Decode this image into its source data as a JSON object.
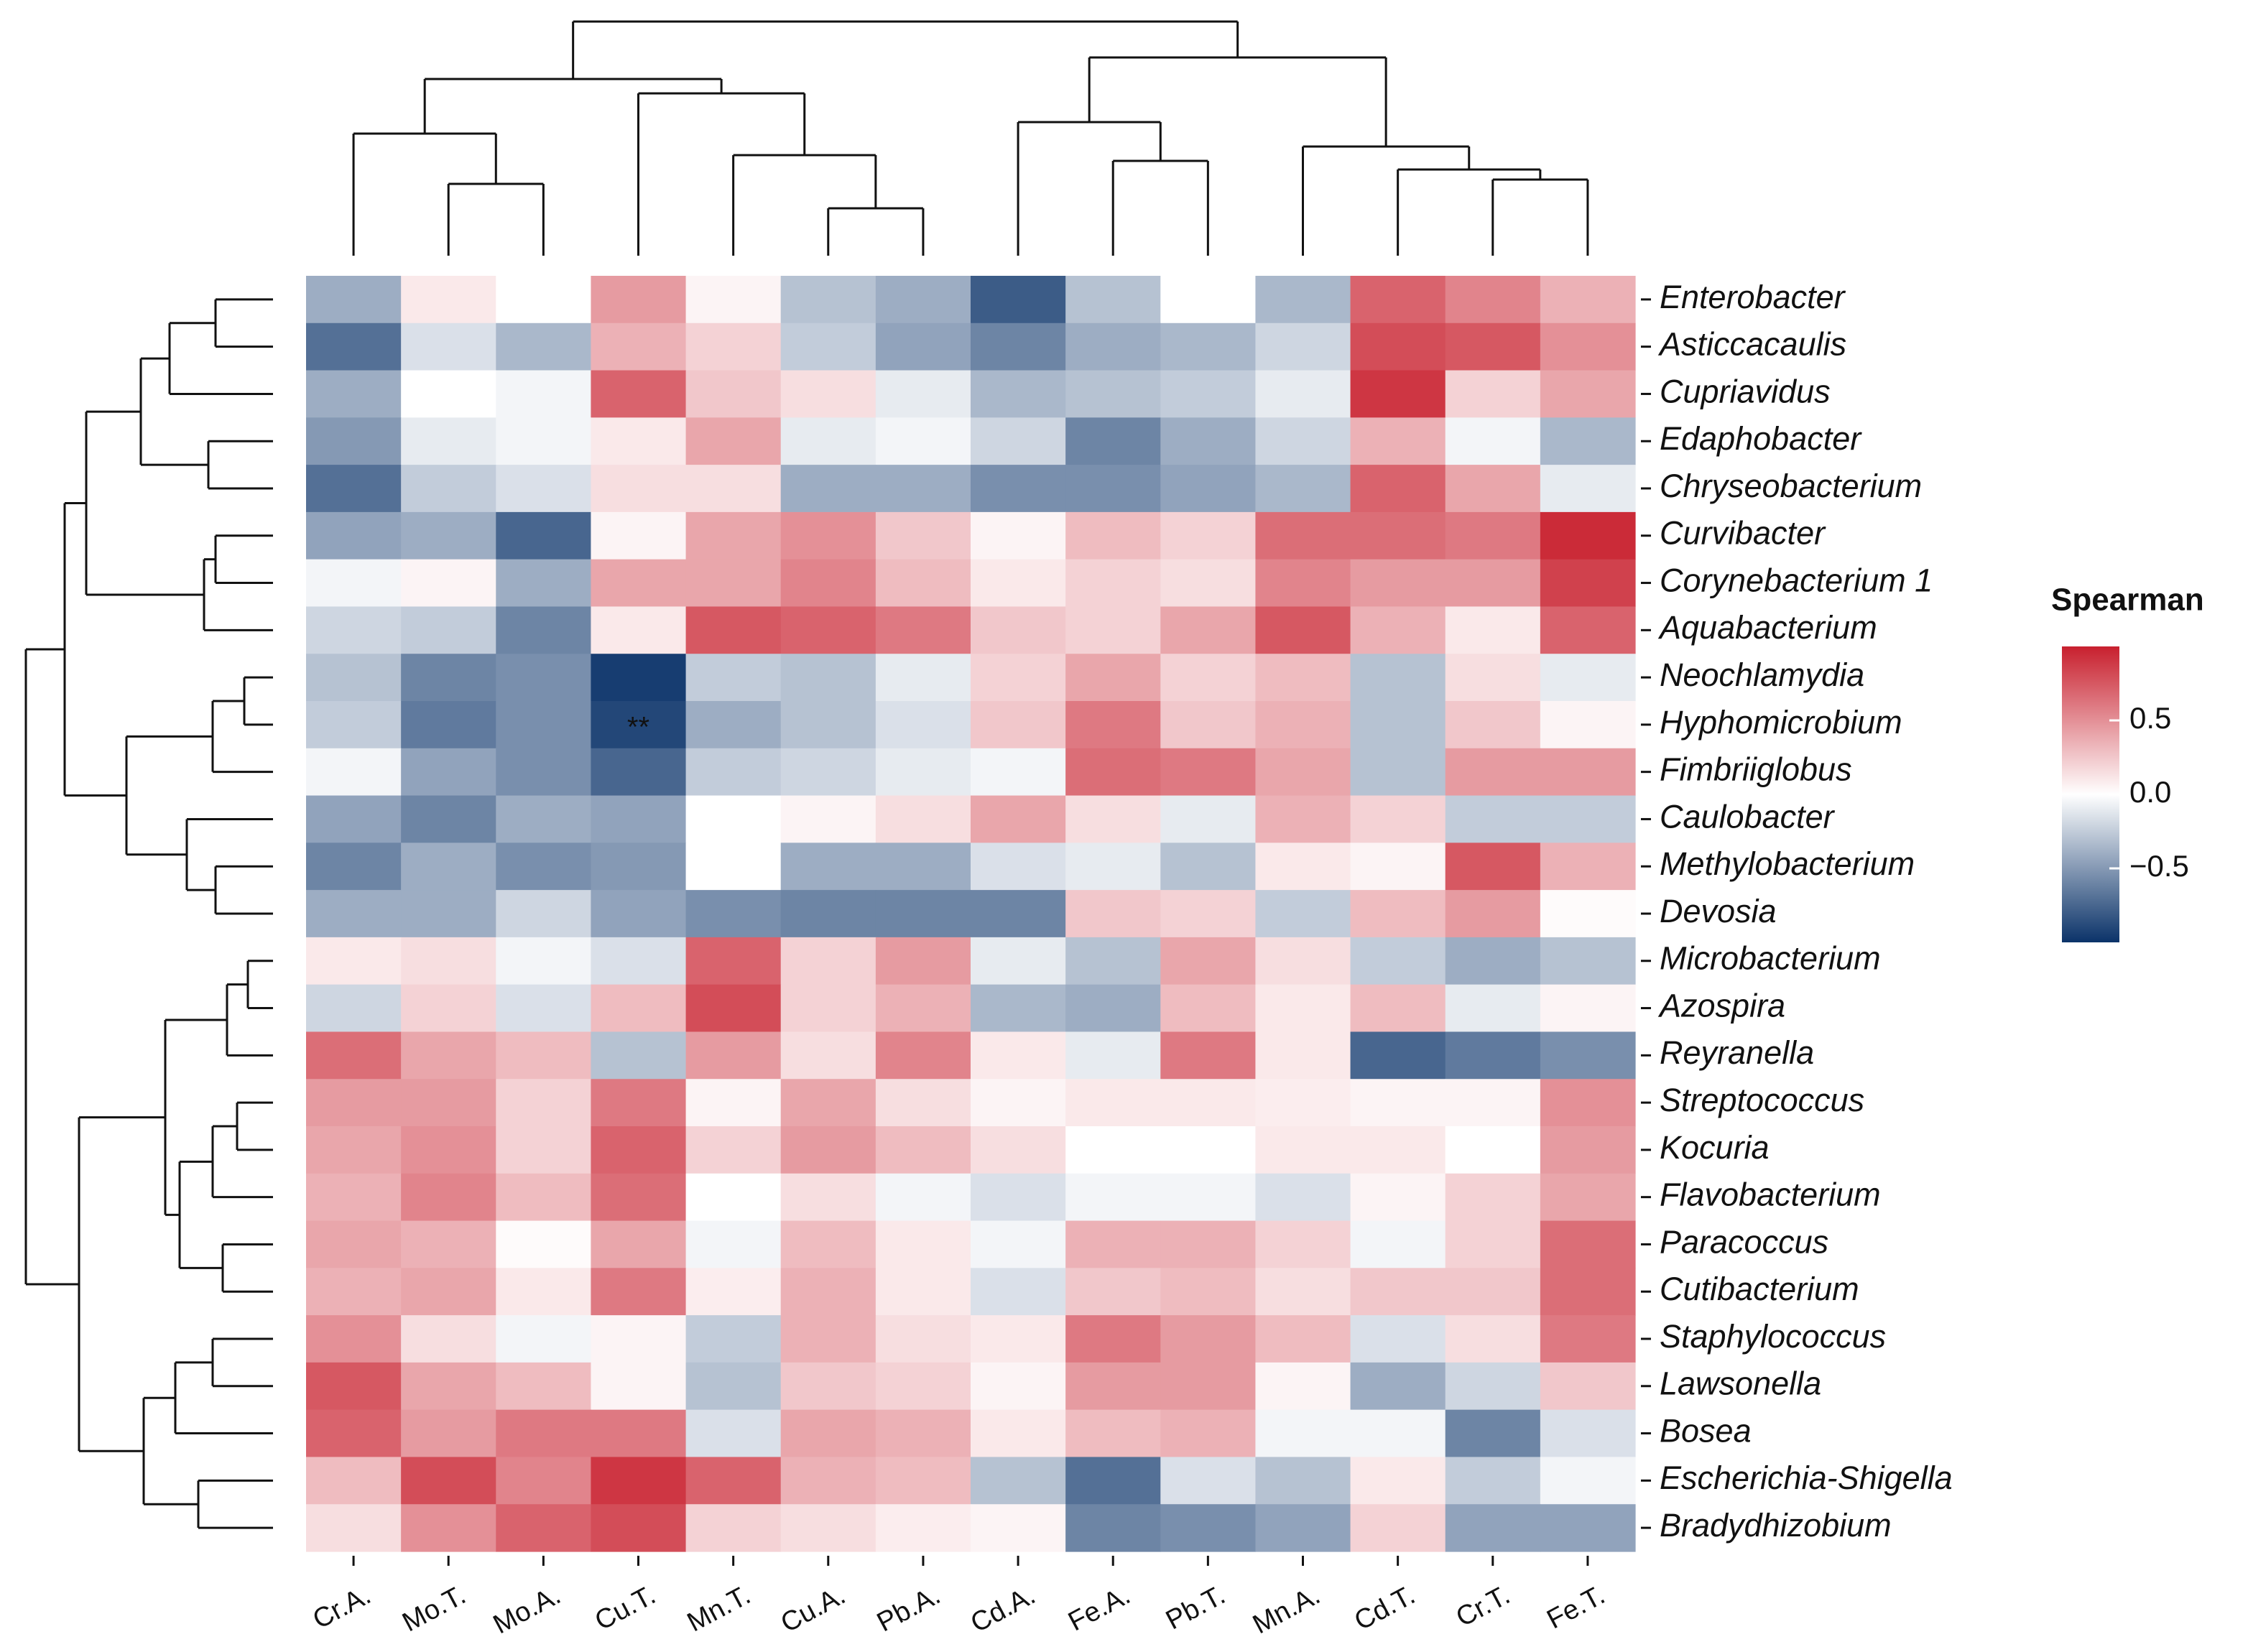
{
  "chart_data": {
    "type": "heatmap",
    "categories": [
      "Cr.A.",
      "Mo.T.",
      "Mo.A.",
      "Cu.T.",
      "Mn.T.",
      "Cu.A.",
      "Pb.A.",
      "Cd.A.",
      "Fe.A.",
      "Pb.T.",
      "Mn.A.",
      "Cd.T.",
      "Cr.T.",
      "Fe.T."
    ],
    "rows": [
      "Enterobacter",
      "Asticcacaulis",
      "Cupriavidus",
      "Edaphobacter",
      "Chryseobacterium",
      "Curvibacter",
      "Corynebacterium 1",
      "Aquabacterium",
      "Neochlamydia",
      "Hyphomicrobium",
      "Fimbriiglobus",
      "Caulobacter",
      "Methylobacterium",
      "Devosia",
      "Microbacterium",
      "Azospira",
      "Reyranella",
      "Streptococcus",
      "Kocuria",
      "Flavobacterium",
      "Paracoccus",
      "Cutibacterium",
      "Staphylococcus",
      "Lawsonella",
      "Bosea",
      "Escherichia-Shigella",
      "Bradydhizobium"
    ],
    "values": [
      [
        -0.4,
        0.1,
        0.0,
        0.45,
        0.05,
        -0.3,
        -0.4,
        -0.8,
        -0.3,
        0.0,
        -0.35,
        0.7,
        0.55,
        0.35
      ],
      [
        -0.7,
        -0.15,
        -0.35,
        0.35,
        0.2,
        -0.25,
        -0.45,
        -0.6,
        -0.4,
        -0.35,
        -0.2,
        0.8,
        0.75,
        0.5
      ],
      [
        -0.4,
        0.0,
        -0.05,
        0.7,
        0.25,
        0.15,
        -0.1,
        -0.35,
        -0.3,
        -0.25,
        -0.1,
        0.9,
        0.2,
        0.4
      ],
      [
        -0.5,
        -0.1,
        -0.05,
        0.1,
        0.4,
        -0.1,
        -0.05,
        -0.2,
        -0.6,
        -0.4,
        -0.2,
        0.35,
        -0.05,
        -0.35
      ],
      [
        -0.7,
        -0.25,
        -0.15,
        0.15,
        0.15,
        -0.4,
        -0.4,
        -0.55,
        -0.55,
        -0.45,
        -0.35,
        0.7,
        0.4,
        -0.1
      ],
      [
        -0.45,
        -0.4,
        -0.75,
        0.05,
        0.4,
        0.5,
        0.25,
        0.05,
        0.3,
        0.2,
        0.65,
        0.65,
        0.6,
        0.95
      ],
      [
        -0.05,
        0.05,
        -0.4,
        0.4,
        0.4,
        0.55,
        0.3,
        0.1,
        0.2,
        0.15,
        0.55,
        0.45,
        0.45,
        0.85
      ],
      [
        -0.2,
        -0.25,
        -0.6,
        0.1,
        0.75,
        0.7,
        0.6,
        0.25,
        0.2,
        0.4,
        0.75,
        0.35,
        0.1,
        0.7
      ],
      [
        -0.3,
        -0.6,
        -0.55,
        -0.95,
        -0.25,
        -0.3,
        -0.1,
        0.2,
        0.4,
        0.2,
        0.3,
        -0.3,
        0.15,
        -0.1
      ],
      [
        -0.25,
        -0.65,
        -0.55,
        -0.9,
        -0.4,
        -0.3,
        -0.15,
        0.25,
        0.6,
        0.25,
        0.35,
        -0.3,
        0.25,
        0.05
      ],
      [
        -0.05,
        -0.45,
        -0.55,
        -0.75,
        -0.25,
        -0.2,
        -0.1,
        -0.05,
        0.65,
        0.6,
        0.4,
        -0.3,
        0.45,
        0.45
      ],
      [
        -0.45,
        -0.6,
        -0.4,
        -0.45,
        0.0,
        0.05,
        0.15,
        0.4,
        0.15,
        -0.1,
        0.35,
        0.2,
        -0.25,
        -0.25
      ],
      [
        -0.6,
        -0.4,
        -0.55,
        -0.5,
        0.0,
        -0.4,
        -0.4,
        -0.15,
        -0.1,
        -0.3,
        0.1,
        0.05,
        0.75,
        0.35
      ],
      [
        -0.4,
        -0.4,
        -0.2,
        -0.45,
        -0.55,
        -0.6,
        -0.6,
        -0.6,
        0.25,
        0.2,
        -0.25,
        0.3,
        0.45,
        0.02
      ],
      [
        0.1,
        0.15,
        -0.05,
        -0.15,
        0.7,
        0.2,
        0.45,
        -0.1,
        -0.3,
        0.4,
        0.15,
        -0.25,
        -0.4,
        -0.3
      ],
      [
        -0.2,
        0.2,
        -0.15,
        0.3,
        0.8,
        0.2,
        0.35,
        -0.35,
        -0.4,
        0.3,
        0.1,
        0.3,
        -0.1,
        0.05
      ],
      [
        0.65,
        0.4,
        0.3,
        -0.3,
        0.45,
        0.15,
        0.55,
        0.1,
        -0.1,
        0.6,
        0.1,
        -0.75,
        -0.65,
        -0.55
      ],
      [
        0.45,
        0.45,
        0.2,
        0.6,
        0.05,
        0.4,
        0.15,
        0.05,
        0.1,
        0.1,
        0.08,
        0.05,
        0.05,
        0.5
      ],
      [
        0.4,
        0.5,
        0.2,
        0.7,
        0.2,
        0.45,
        0.3,
        0.15,
        0.0,
        0.0,
        0.1,
        0.1,
        0.0,
        0.45
      ],
      [
        0.35,
        0.55,
        0.3,
        0.65,
        0.0,
        0.15,
        -0.05,
        -0.15,
        -0.05,
        -0.05,
        -0.15,
        0.05,
        0.2,
        0.4
      ],
      [
        0.4,
        0.35,
        0.02,
        0.4,
        -0.05,
        0.3,
        0.1,
        -0.05,
        0.35,
        0.35,
        0.2,
        -0.05,
        0.2,
        0.65
      ],
      [
        0.35,
        0.4,
        0.1,
        0.6,
        0.08,
        0.35,
        0.1,
        -0.15,
        0.25,
        0.3,
        0.15,
        0.25,
        0.25,
        0.65
      ],
      [
        0.5,
        0.15,
        -0.05,
        0.05,
        -0.25,
        0.35,
        0.15,
        0.1,
        0.6,
        0.45,
        0.3,
        -0.15,
        0.15,
        0.6
      ],
      [
        0.75,
        0.4,
        0.3,
        0.05,
        -0.3,
        0.25,
        0.2,
        0.05,
        0.45,
        0.45,
        0.05,
        -0.4,
        -0.2,
        0.25
      ],
      [
        0.7,
        0.45,
        0.6,
        0.6,
        -0.15,
        0.4,
        0.35,
        0.1,
        0.3,
        0.35,
        -0.05,
        -0.05,
        -0.6,
        -0.15
      ],
      [
        0.3,
        0.8,
        0.55,
        0.9,
        0.7,
        0.35,
        0.3,
        -0.3,
        -0.7,
        -0.15,
        -0.3,
        0.1,
        -0.25,
        -0.05
      ],
      [
        0.15,
        0.5,
        0.7,
        0.8,
        0.2,
        0.15,
        0.08,
        0.05,
        -0.6,
        -0.55,
        -0.45,
        0.2,
        -0.45,
        -0.45
      ]
    ],
    "colorscale": [
      "#0b3369",
      "#ffffff",
      "#c8202e"
    ],
    "clim": [
      -1,
      1
    ],
    "cticks": [
      {
        "value": -0.5,
        "label": "−0.5"
      },
      {
        "value": 0,
        "label": "0.0"
      },
      {
        "value": 0.5,
        "label": "0.5"
      }
    ],
    "legend_title": "Spearman",
    "annotations": [
      {
        "text": "**",
        "row": 9,
        "col": 3
      }
    ]
  }
}
